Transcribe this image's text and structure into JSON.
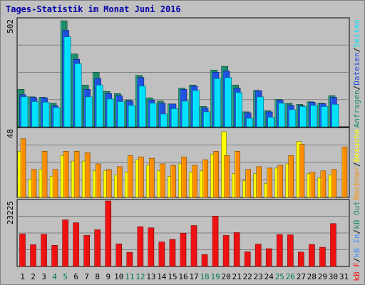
{
  "title": "Tages-Statistik im Monat Juni 2016",
  "colors": {
    "background": "#c0c0c0",
    "panel": "#c0c0c0",
    "grid": "#808080",
    "hits": "#1f8a6a",
    "files": "#2050e0",
    "pages": "#00e0ff",
    "visits": "#ffff00",
    "sites": "#ff8c00",
    "kb_out": "#b0b0b0",
    "kb_in": "#4090ff",
    "kbf": "#ee1111",
    "weekend": "#007a4a",
    "weekday": "#000000"
  },
  "chart_data": [
    {
      "type": "bar",
      "ylabel": "502",
      "ylim": [
        0,
        502
      ],
      "legend": [
        {
          "text": "Anfragen",
          "color": "#1f8a6a"
        },
        {
          "text": "/",
          "color": "#000000"
        },
        {
          "text": "Dateien",
          "color": "#2050e0"
        },
        {
          "text": "/",
          "color": "#000000"
        },
        {
          "text": "Seiten",
          "color": "#00e0ff"
        }
      ],
      "categories": [
        "1",
        "2",
        "3",
        "4",
        "5",
        "6",
        "7",
        "8",
        "9",
        "10",
        "11",
        "12",
        "13",
        "14",
        "15",
        "16",
        "17",
        "18",
        "19",
        "20",
        "21",
        "22",
        "23",
        "24",
        "25",
        "26",
        "27",
        "28",
        "29",
        "30",
        "31"
      ],
      "weekend_days": [
        "4",
        "5",
        "11",
        "12",
        "18",
        "19",
        "25",
        "26"
      ],
      "series": [
        {
          "name": "Anfragen",
          "values": [
            175,
            140,
            138,
            110,
            495,
            340,
            195,
            255,
            165,
            155,
            125,
            240,
            135,
            120,
            107,
            180,
            195,
            95,
            265,
            282,
            195,
            70,
            170,
            75,
            128,
            110,
            105,
            117,
            110,
            145,
            0
          ]
        },
        {
          "name": "Dateien",
          "values": [
            150,
            137,
            135,
            98,
            450,
            315,
            175,
            225,
            155,
            145,
            120,
            230,
            125,
            110,
            107,
            175,
            190,
            88,
            255,
            260,
            180,
            65,
            168,
            70,
            125,
            100,
            98,
            115,
            108,
            138,
            0
          ]
        },
        {
          "name": "Seiten",
          "values": [
            140,
            118,
            115,
            90,
            420,
            295,
            140,
            195,
            130,
            118,
            100,
            190,
            110,
            60,
            85,
            120,
            170,
            70,
            225,
            230,
            160,
            40,
            140,
            45,
            110,
            80,
            95,
            100,
            95,
            105,
            0
          ]
        }
      ]
    },
    {
      "type": "bar",
      "ylabel": "48",
      "ylim": [
        0,
        48
      ],
      "legend": [
        {
          "text": "Rechner",
          "color": "#ff8c00"
        },
        {
          "text": "/",
          "color": "#000000"
        },
        {
          "text": "Besuche",
          "color": "#ffff00"
        }
      ],
      "categories": [
        "1",
        "2",
        "3",
        "4",
        "5",
        "6",
        "7",
        "8",
        "9",
        "10",
        "11",
        "12",
        "13",
        "14",
        "15",
        "16",
        "17",
        "18",
        "19",
        "20",
        "21",
        "22",
        "23",
        "24",
        "25",
        "26",
        "27",
        "28",
        "29",
        "30",
        "31"
      ],
      "series": [
        {
          "name": "Besuche",
          "values": [
            33,
            13,
            20,
            15,
            30,
            26,
            26,
            19,
            19,
            16,
            18,
            27,
            23,
            19,
            15,
            24,
            18,
            19,
            31,
            47,
            17,
            12,
            17,
            10,
            21,
            24,
            40,
            17,
            14,
            16,
            0
          ]
        },
        {
          "name": "Rechner",
          "values": [
            42,
            20,
            33,
            20,
            33,
            33,
            32,
            24,
            20,
            22,
            30,
            29,
            28,
            24,
            23,
            29,
            23,
            27,
            33,
            30,
            33,
            20,
            22,
            21,
            23,
            30,
            38,
            18,
            19,
            20,
            36
          ]
        }
      ]
    },
    {
      "type": "bar",
      "ylabel": "23225",
      "ylim": [
        0,
        23225
      ],
      "legend": [
        {
          "text": "kB F",
          "color": "#ee1111"
        },
        {
          "text": "/",
          "color": "#000000"
        },
        {
          "text": "kB In",
          "color": "#4090ff"
        },
        {
          "text": "/",
          "color": "#000000"
        },
        {
          "text": "kB Out",
          "color": "#1f8a6a"
        }
      ],
      "categories": [
        "1",
        "2",
        "3",
        "4",
        "5",
        "6",
        "7",
        "8",
        "9",
        "10",
        "11",
        "12",
        "13",
        "14",
        "15",
        "16",
        "17",
        "18",
        "19",
        "20",
        "21",
        "22",
        "23",
        "24",
        "25",
        "26",
        "27",
        "28",
        "29",
        "30",
        "31"
      ],
      "series": [
        {
          "name": "kB F",
          "values": [
            11500,
            7700,
            11400,
            7500,
            16500,
            15500,
            11000,
            13000,
            23225,
            8000,
            5000,
            14100,
            13700,
            8700,
            9600,
            11800,
            14500,
            4200,
            17800,
            11000,
            12000,
            5200,
            7900,
            6300,
            11300,
            11200,
            5100,
            7800,
            6800,
            15200,
            0
          ]
        }
      ]
    }
  ],
  "days": [
    "1",
    "2",
    "3",
    "4",
    "5",
    "6",
    "7",
    "8",
    "9",
    "10",
    "11",
    "12",
    "13",
    "14",
    "15",
    "16",
    "17",
    "18",
    "19",
    "20",
    "21",
    "22",
    "23",
    "24",
    "25",
    "26",
    "27",
    "28",
    "29",
    "30",
    "31"
  ]
}
